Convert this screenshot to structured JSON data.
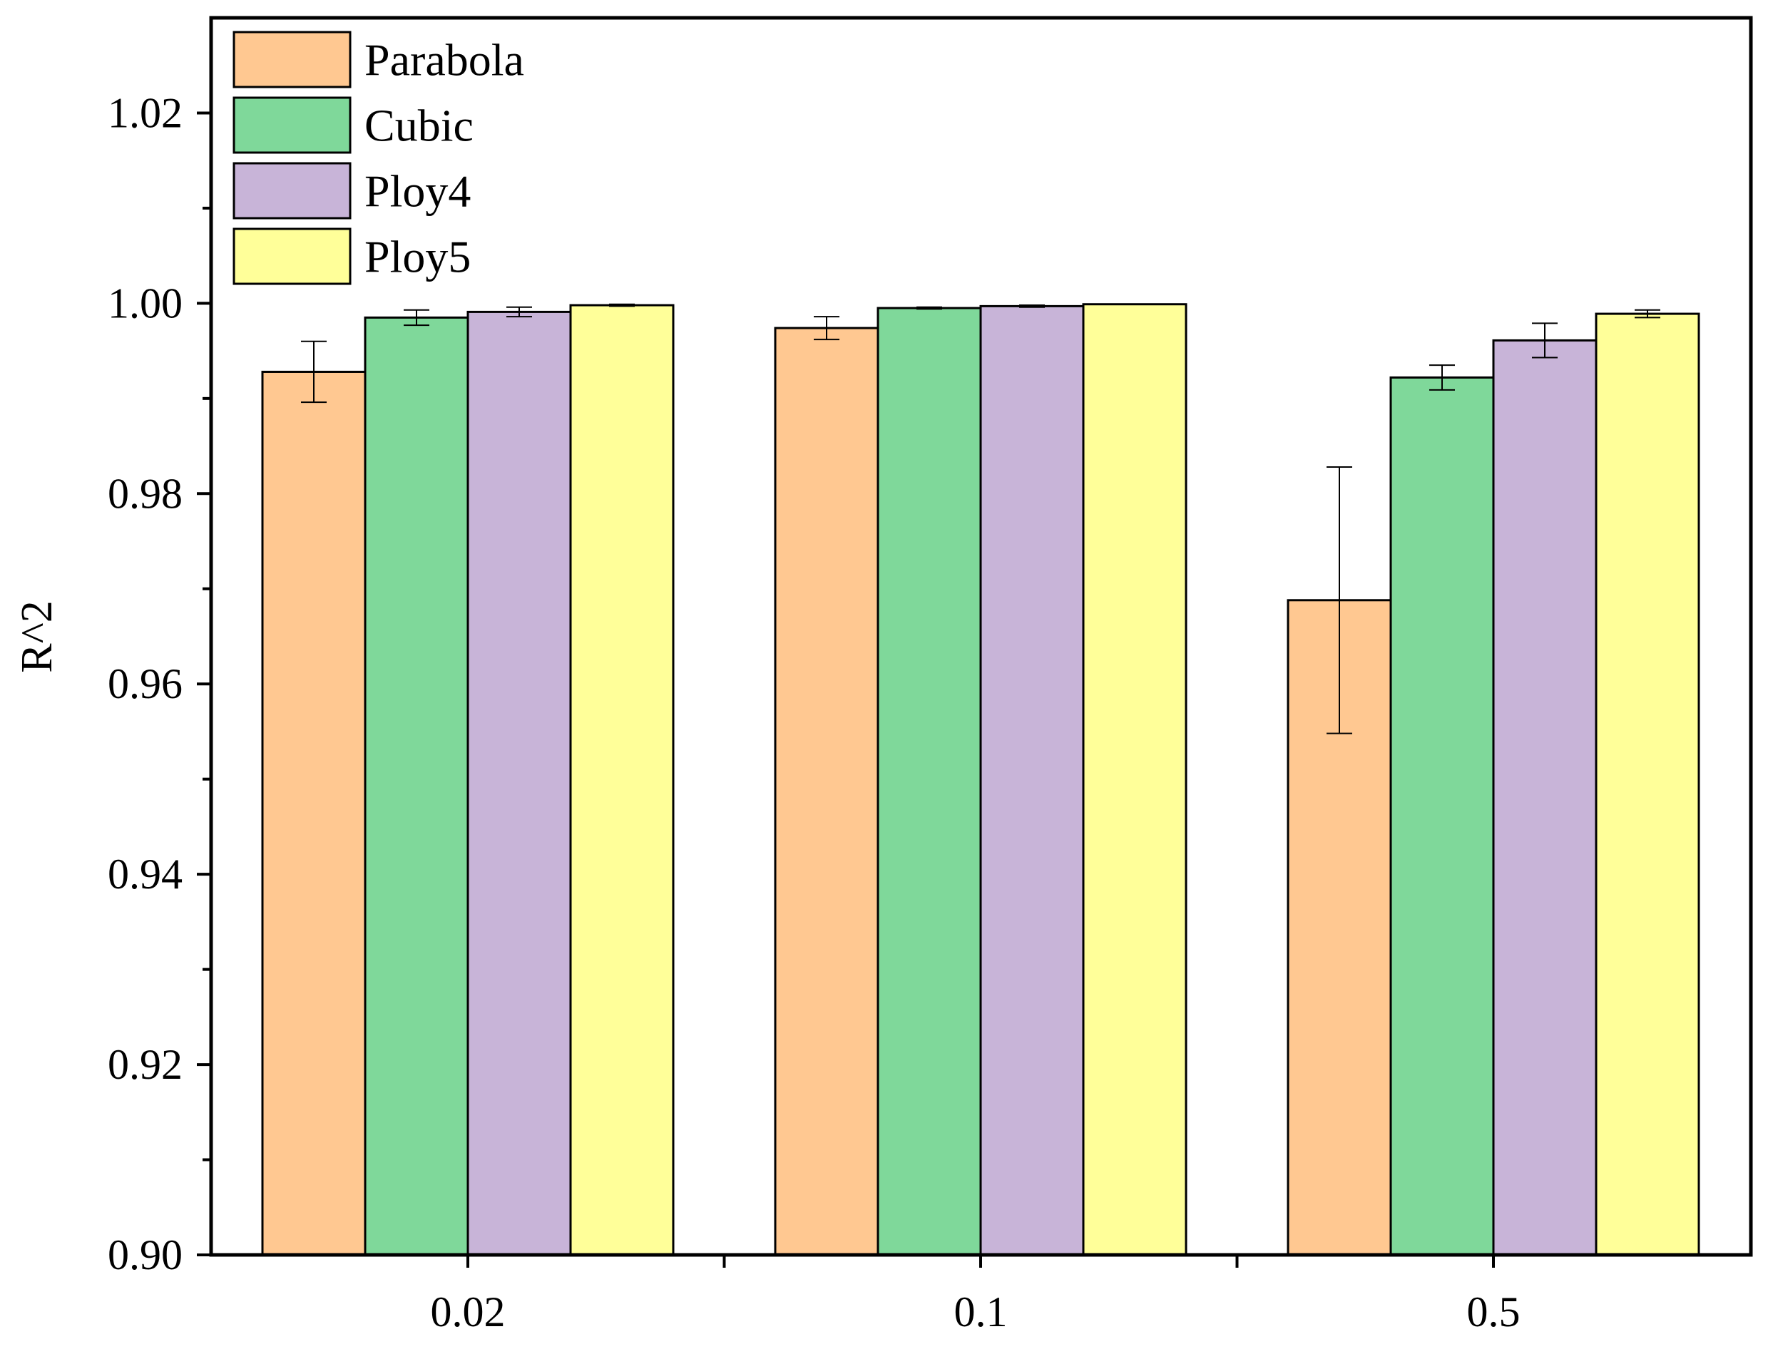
{
  "chart_data": {
    "type": "bar",
    "title": "",
    "xlabel": "",
    "ylabel": "R^2",
    "categories": [
      "0.02",
      "0.1",
      "0.5"
    ],
    "ylim": [
      0.9,
      1.03
    ],
    "yticks": [
      "0.90",
      "0.92",
      "0.94",
      "0.96",
      "0.98",
      "1.00",
      "1.02"
    ],
    "legend_position": "top-left",
    "grid": false,
    "series": [
      {
        "name": "Parabola",
        "color": "#FFC891",
        "values": [
          0.9928,
          0.9974,
          0.9688
        ],
        "errors": [
          0.0032,
          0.0012,
          0.014
        ]
      },
      {
        "name": "Cubic",
        "color": "#7FD89A",
        "values": [
          0.9985,
          0.9995,
          0.9922
        ],
        "errors": [
          0.0008,
          0.0001,
          0.0013
        ]
      },
      {
        "name": "Ploy4",
        "color": "#C8B4D8",
        "values": [
          0.9991,
          0.9997,
          0.9961
        ],
        "errors": [
          0.0005,
          0.0001,
          0.0018
        ]
      },
      {
        "name": "Ploy5",
        "color": "#FFFF99",
        "values": [
          0.9998,
          0.9999,
          0.9989
        ],
        "errors": [
          0.0001,
          0.0,
          0.0004
        ]
      }
    ]
  }
}
